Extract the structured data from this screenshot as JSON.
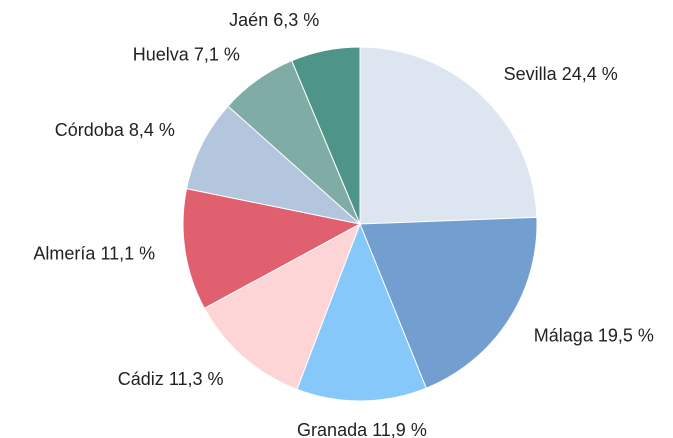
{
  "chart_data": {
    "type": "pie",
    "categories": [
      "Sevilla",
      "Málaga",
      "Granada",
      "Cádiz",
      "Almería",
      "Córdoba",
      "Huelva",
      "Jaén"
    ],
    "values": [
      24.4,
      19.5,
      11.9,
      11.3,
      11.1,
      8.4,
      7.1,
      6.3
    ],
    "value_labels": [
      "24,4 %",
      "19,5 %",
      "11,9 %",
      "11,3 %",
      "11,1 %",
      "8,4 %",
      "7,1 %",
      "6,3 %"
    ],
    "colors": [
      "#dde5f0",
      "#729fd0",
      "#86c8fa",
      "#fdd5d6",
      "#e06070",
      "#b4c5de",
      "#80aca6",
      "#4f9488"
    ]
  }
}
